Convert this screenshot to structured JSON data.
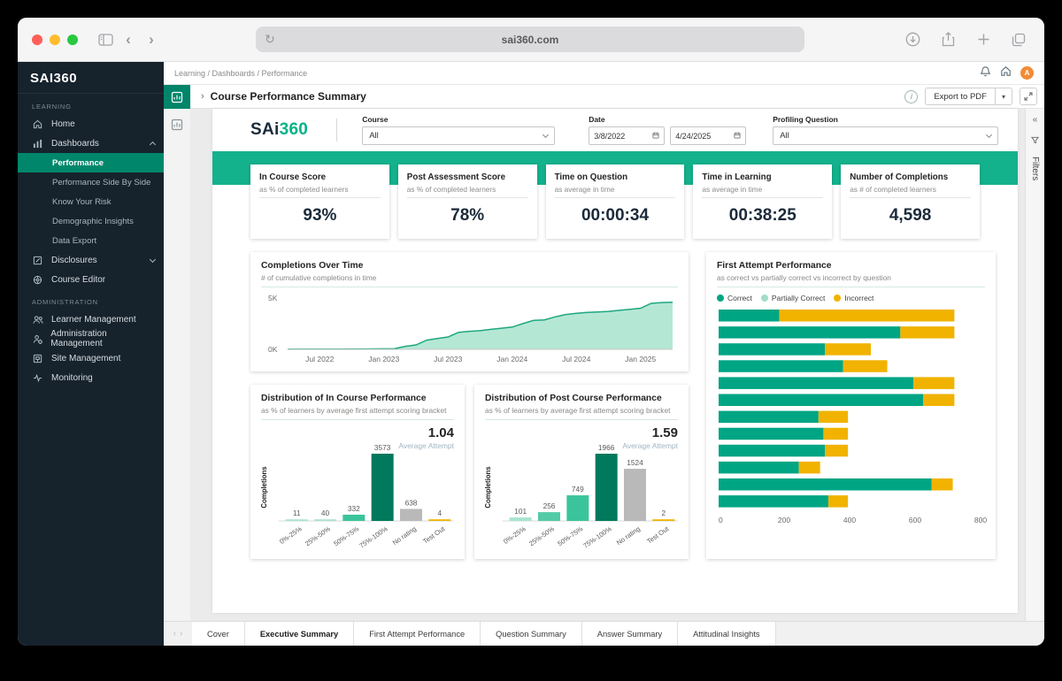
{
  "browser": {
    "url": "sai360.com"
  },
  "topbar": {
    "breadcrumb": "Learning / Dashboards / Performance",
    "avatar_initial": "A"
  },
  "sidebar": {
    "logo": "SAI360",
    "learning_label": "LEARNING",
    "home": "Home",
    "dashboards": "Dashboards",
    "dashboards_children": [
      "Performance",
      "Performance Side By Side",
      "Know Your Risk",
      "Demographic Insights",
      "Data Export"
    ],
    "disclosures": "Disclosures",
    "course_editor": "Course Editor",
    "admin_label": "ADMINISTRATION",
    "admin_items": [
      "Learner Management",
      "Administration Management",
      "Site Management",
      "Monitoring"
    ]
  },
  "report_header": {
    "title": "Course Performance Summary",
    "export_label": "Export to PDF"
  },
  "filters_strip": {
    "label": "Filters"
  },
  "filter_bar": {
    "logo_prefix": "SAi",
    "logo_suffix": "360",
    "course_label": "Course",
    "course_value": "All",
    "date_label": "Date",
    "date_from": "3/8/2022",
    "date_to": "4/24/2025",
    "profiling_label": "Profiling Question",
    "profiling_value": "All"
  },
  "kpis": [
    {
      "title": "In Course Score",
      "subtitle": "as % of completed learners",
      "value": "93%"
    },
    {
      "title": "Post Assessment Score",
      "subtitle": "as % of completed learners",
      "value": "78%"
    },
    {
      "title": "Time on Question",
      "subtitle": "as average in time",
      "value": "00:00:34"
    },
    {
      "title": "Time in Learning",
      "subtitle": "as average in time",
      "value": "00:38:25"
    },
    {
      "title": "Number of Completions",
      "subtitle": "as # of completed learners",
      "value": "4,598"
    }
  ],
  "chart_data": [
    {
      "type": "area",
      "title": "Completions Over Time",
      "subtitle": "# of cumulative completions in time",
      "ylim": [
        0,
        5000
      ],
      "y_tick_labels": [
        "0K",
        "5K"
      ],
      "x_ticks": [
        "Jul 2022",
        "Jan 2023",
        "Jul 2023",
        "Jan 2024",
        "Jul 2024",
        "Jan 2025"
      ],
      "x_tick_idx": [
        3,
        9,
        15,
        21,
        27,
        33
      ],
      "values": [
        10,
        13,
        16,
        20,
        24,
        28,
        32,
        36,
        40,
        55,
        65,
        290,
        430,
        900,
        1060,
        1210,
        1660,
        1760,
        1820,
        1950,
        2060,
        2170,
        2510,
        2820,
        2870,
        3160,
        3400,
        3520,
        3600,
        3650,
        3700,
        3800,
        3900,
        4010,
        4480,
        4560,
        4598
      ],
      "line_color": "#1FA77F",
      "fill_color": "#B5E7D5"
    },
    {
      "type": "bar",
      "orientation": "horizontal",
      "stacked": true,
      "title": "First Attempt Performance",
      "subtitle": "as correct vs partially correct vs incorrect by question",
      "legend": [
        "Correct",
        "Partially Correct",
        "Incorrect"
      ],
      "colors": [
        "#00A584",
        "#9FDEC7",
        "#F1B300"
      ],
      "xlim": [
        0,
        800
      ],
      "x_ticks": [
        0,
        200,
        400,
        600,
        800
      ],
      "series": [
        {
          "name": "Correct",
          "values": [
            185,
            555,
            325,
            380,
            595,
            625,
            305,
            320,
            325,
            245,
            650,
            335
          ]
        },
        {
          "name": "Partially Correct",
          "values": [
            0,
            0,
            0,
            0,
            0,
            0,
            0,
            0,
            0,
            0,
            0,
            0
          ]
        },
        {
          "name": "Incorrect",
          "values": [
            535,
            165,
            140,
            135,
            125,
            95,
            90,
            75,
            70,
            65,
            65,
            60
          ]
        }
      ]
    },
    {
      "type": "bar",
      "title": "Distribution of In Course Performance",
      "subtitle": "as % of learners by average first attempt scoring bracket",
      "stat_value": "1.04",
      "stat_label": "Average Attempt",
      "ylabel": "Completions",
      "categories": [
        "0%-25%",
        "25%-50%",
        "50%-75%",
        "75%-100%",
        "No rating",
        "Test Out"
      ],
      "values": [
        11,
        40,
        332,
        3573,
        638,
        4
      ],
      "bar_colors": [
        "#A9E4CE",
        "#A9E4CE",
        "#3BC49C",
        "#00795C",
        "#B9B9B9",
        "#F1B300"
      ]
    },
    {
      "type": "bar",
      "title": "Distribution of Post Course Performance",
      "subtitle": "as % of learners by average first attempt scoring bracket",
      "stat_value": "1.59",
      "stat_label": "Average Attempt",
      "ylabel": "Completions",
      "categories": [
        "0%-25%",
        "25%-50%",
        "50%-75%",
        "75%-100%",
        "No rating",
        "Test Out"
      ],
      "values": [
        101,
        256,
        749,
        1966,
        1524,
        2
      ],
      "bar_colors": [
        "#A9E4CE",
        "#52CBA6",
        "#3BC49C",
        "#00795C",
        "#B9B9B9",
        "#F1B300"
      ]
    }
  ],
  "tabs": {
    "items": [
      "Cover",
      "Executive Summary",
      "First Attempt Performance",
      "Question Summary",
      "Answer Summary",
      "Attitudinal Insights"
    ],
    "active_index": 1
  },
  "colors": {
    "brand_green": "#14B18D",
    "sidebar_active_green": "#00876B",
    "dark_green": "#00795C",
    "mid_green": "#3BC49C",
    "light_green": "#A9E4CE",
    "stack_green": "#00A584",
    "incorrect_yellow": "#F1B300",
    "no_rating_gray": "#B9B9B9",
    "sidebar_bg": "#16222C",
    "avatar_orange": "#F28B36"
  }
}
